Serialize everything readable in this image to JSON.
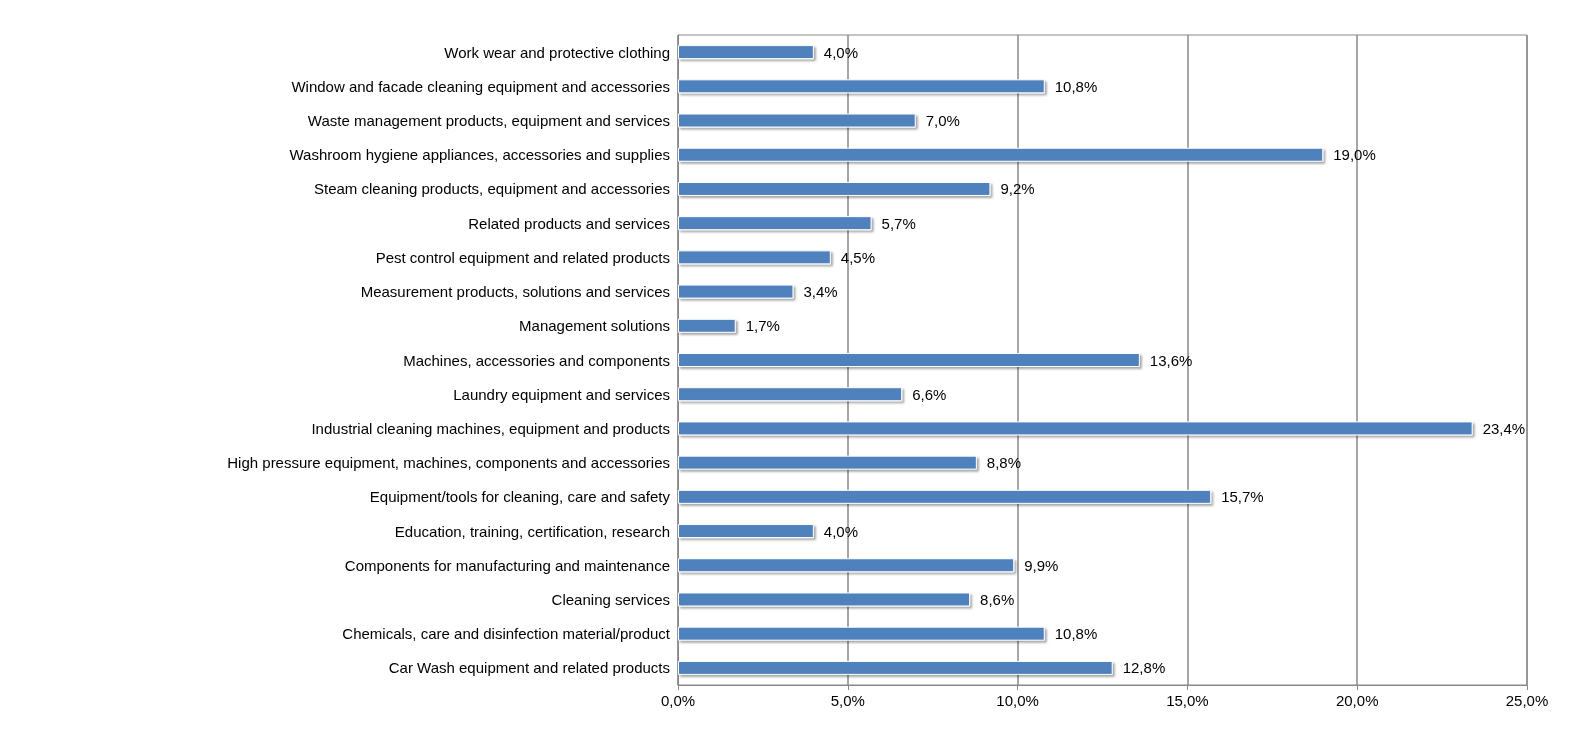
{
  "chart_data": {
    "type": "bar",
    "orientation": "horizontal",
    "categories": [
      "Work wear and protective clothing",
      "Window and facade cleaning equipment and accessories",
      "Waste management products, equipment and services",
      "Washroom hygiene appliances, accessories and supplies",
      "Steam cleaning products, equipment and accessories",
      "Related products and services",
      "Pest control equipment and related products",
      "Measurement products, solutions and services",
      "Management solutions",
      "Machines, accessories and components",
      "Laundry equipment and services",
      "Industrial cleaning machines, equipment and products",
      "High pressure equipment, machines, components and accessories",
      "Equipment/tools for cleaning, care and safety",
      "Education, training, certification, research",
      "Components for manufacturing and maintenance",
      "Cleaning services",
      "Chemicals, care and disinfection material/product",
      "Car Wash equipment and related products"
    ],
    "values": [
      4.0,
      10.8,
      7.0,
      19.0,
      9.2,
      5.7,
      4.5,
      3.4,
      1.7,
      13.6,
      6.6,
      23.4,
      8.8,
      15.7,
      4.0,
      9.9,
      8.6,
      10.8,
      12.8
    ],
    "value_labels": [
      "4,0%",
      "10,8%",
      "7,0%",
      "19,0%",
      "9,2%",
      "5,7%",
      "4,5%",
      "3,4%",
      "1,7%",
      "13,6%",
      "6,6%",
      "23,4%",
      "8,8%",
      "15,7%",
      "4,0%",
      "9,9%",
      "8,6%",
      "10,8%",
      "12,8%"
    ],
    "color": "#4f81bd",
    "xlim": [
      0,
      25
    ],
    "xticks": [
      {
        "value": 0,
        "label": "0,0%"
      },
      {
        "value": 5,
        "label": "5,0%"
      },
      {
        "value": 10,
        "label": "10,0%"
      },
      {
        "value": 15,
        "label": "15,0%"
      },
      {
        "value": 20,
        "label": "20,0%"
      },
      {
        "value": 25,
        "label": "25,0%"
      }
    ],
    "grid": "x"
  }
}
